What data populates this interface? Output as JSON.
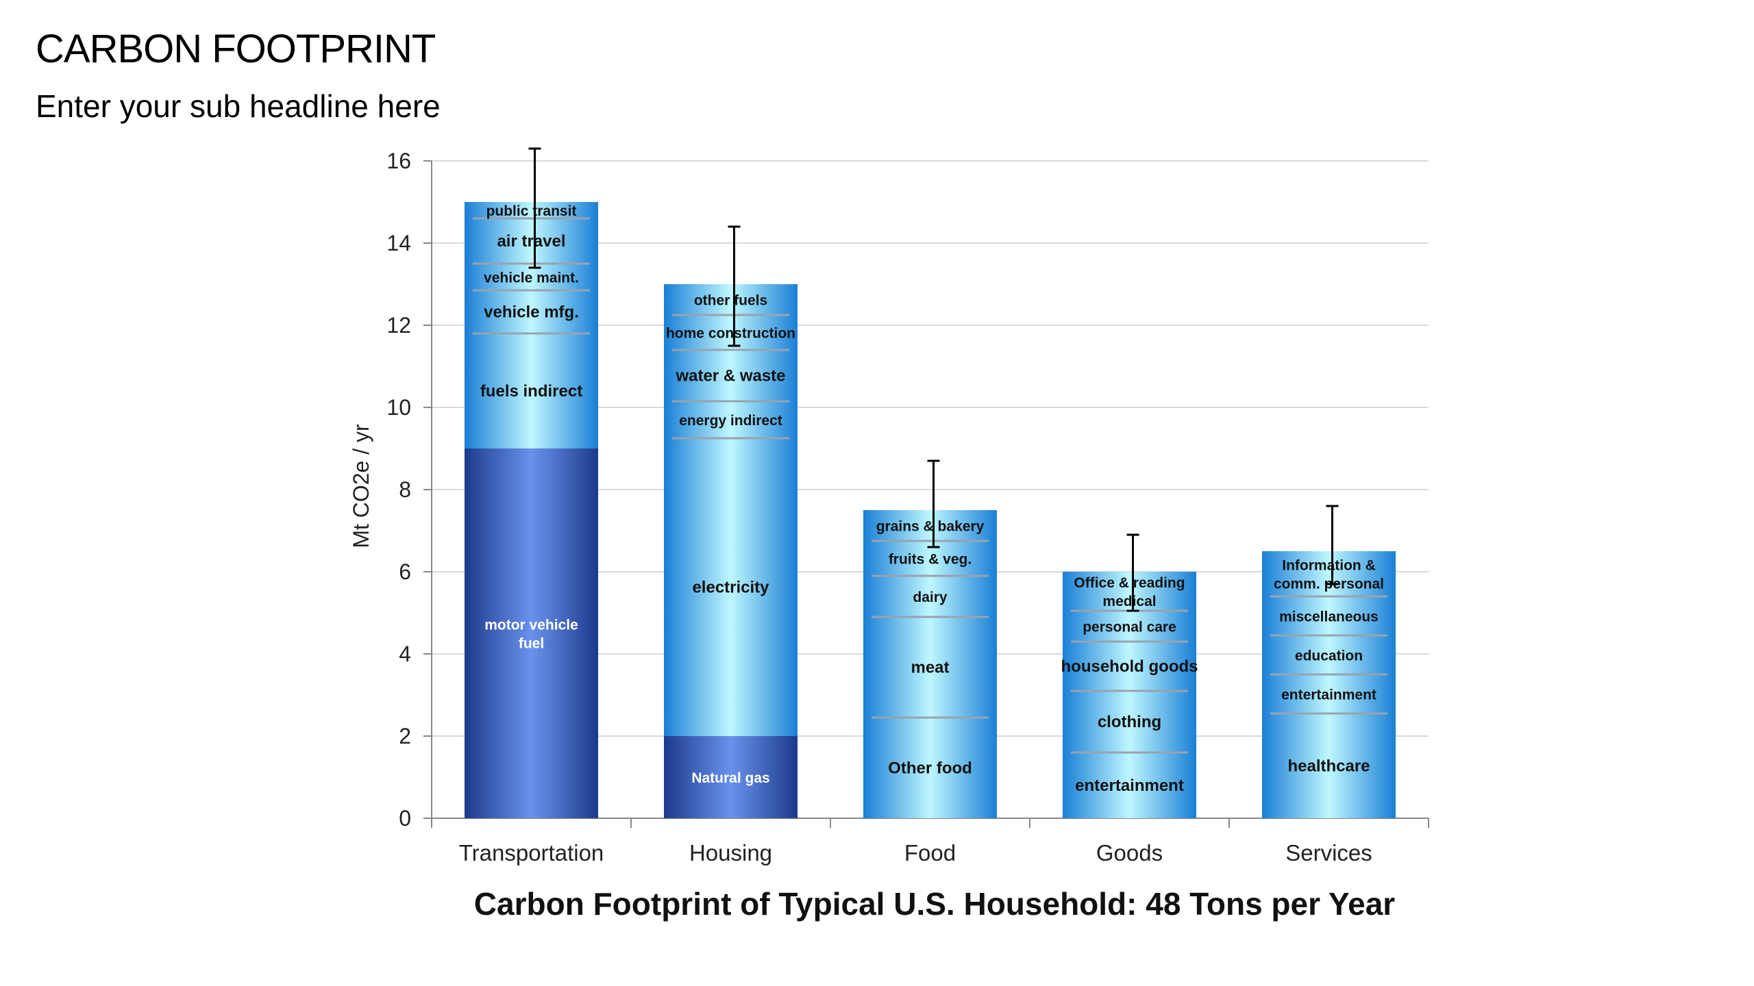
{
  "slide": {
    "title": "CARBON FOOTPRINT",
    "subtitle": "Enter your sub headline here"
  },
  "chart_data": {
    "type": "bar",
    "stacked": true,
    "title": "",
    "xlabel": "Carbon Footprint of Typical U.S. Household: 48 Tons per Year",
    "ylabel": "Mt CO2e / yr",
    "ylim": [
      0,
      16
    ],
    "yticks": [
      0,
      2,
      4,
      6,
      8,
      10,
      12,
      14,
      16
    ],
    "grid": true,
    "categories": [
      {
        "name": "Transportation",
        "total": 15,
        "error": [
          13.4,
          16.3
        ],
        "segments": [
          {
            "label": "motor vehicle fuel",
            "lines": [
              "motor vehicle",
              "fuel"
            ],
            "value": 9.0,
            "style": "dark"
          },
          {
            "label": "fuels indirect",
            "value": 2.8
          },
          {
            "label": "vehicle mfg.",
            "value": 1.05
          },
          {
            "label": "vehicle maint.",
            "value": 0.65
          },
          {
            "label": "air travel",
            "value": 1.1
          },
          {
            "label": "public transit",
            "value": 0.4
          }
        ]
      },
      {
        "name": "Housing",
        "total": 13,
        "error": [
          11.5,
          14.4
        ],
        "segments": [
          {
            "label": "Natural gas",
            "value": 2.0,
            "style": "dark"
          },
          {
            "label": "electricity",
            "value": 7.25
          },
          {
            "label": "energy indirect",
            "value": 0.9
          },
          {
            "label": "water & waste",
            "value": 1.25
          },
          {
            "label": "home construction",
            "value": 0.85
          },
          {
            "label": "other fuels",
            "value": 0.75
          }
        ]
      },
      {
        "name": "Food",
        "total": 7.5,
        "error": [
          6.6,
          8.7
        ],
        "segments": [
          {
            "label": "Other food",
            "value": 2.45
          },
          {
            "label": "meat",
            "value": 2.45
          },
          {
            "label": "dairy",
            "value": 1.0
          },
          {
            "label": "fruits & veg.",
            "value": 0.85
          },
          {
            "label": "grains & bakery",
            "value": 0.75
          }
        ]
      },
      {
        "name": "Goods",
        "total": 6,
        "error": [
          5.05,
          6.9
        ],
        "segments": [
          {
            "label": "entertainment",
            "value": 1.6
          },
          {
            "label": "clothing",
            "value": 1.5
          },
          {
            "label": "household goods",
            "value": 1.2
          },
          {
            "label": "personal care",
            "value": 0.75
          },
          {
            "label": "Office & reading medical",
            "lines": [
              "Office & reading",
              "medical"
            ],
            "value": 0.95
          }
        ]
      },
      {
        "name": "Services",
        "total": 6.5,
        "error": [
          5.7,
          7.6
        ],
        "segments": [
          {
            "label": "healthcare",
            "value": 2.55
          },
          {
            "label": "entertainment",
            "value": 0.95
          },
          {
            "label": "education",
            "value": 0.95
          },
          {
            "label": "miscellaneous",
            "value": 0.95
          },
          {
            "label": "Information & comm. personal",
            "lines": [
              "Information &",
              "comm. personal"
            ],
            "value": 1.1
          }
        ]
      }
    ]
  }
}
